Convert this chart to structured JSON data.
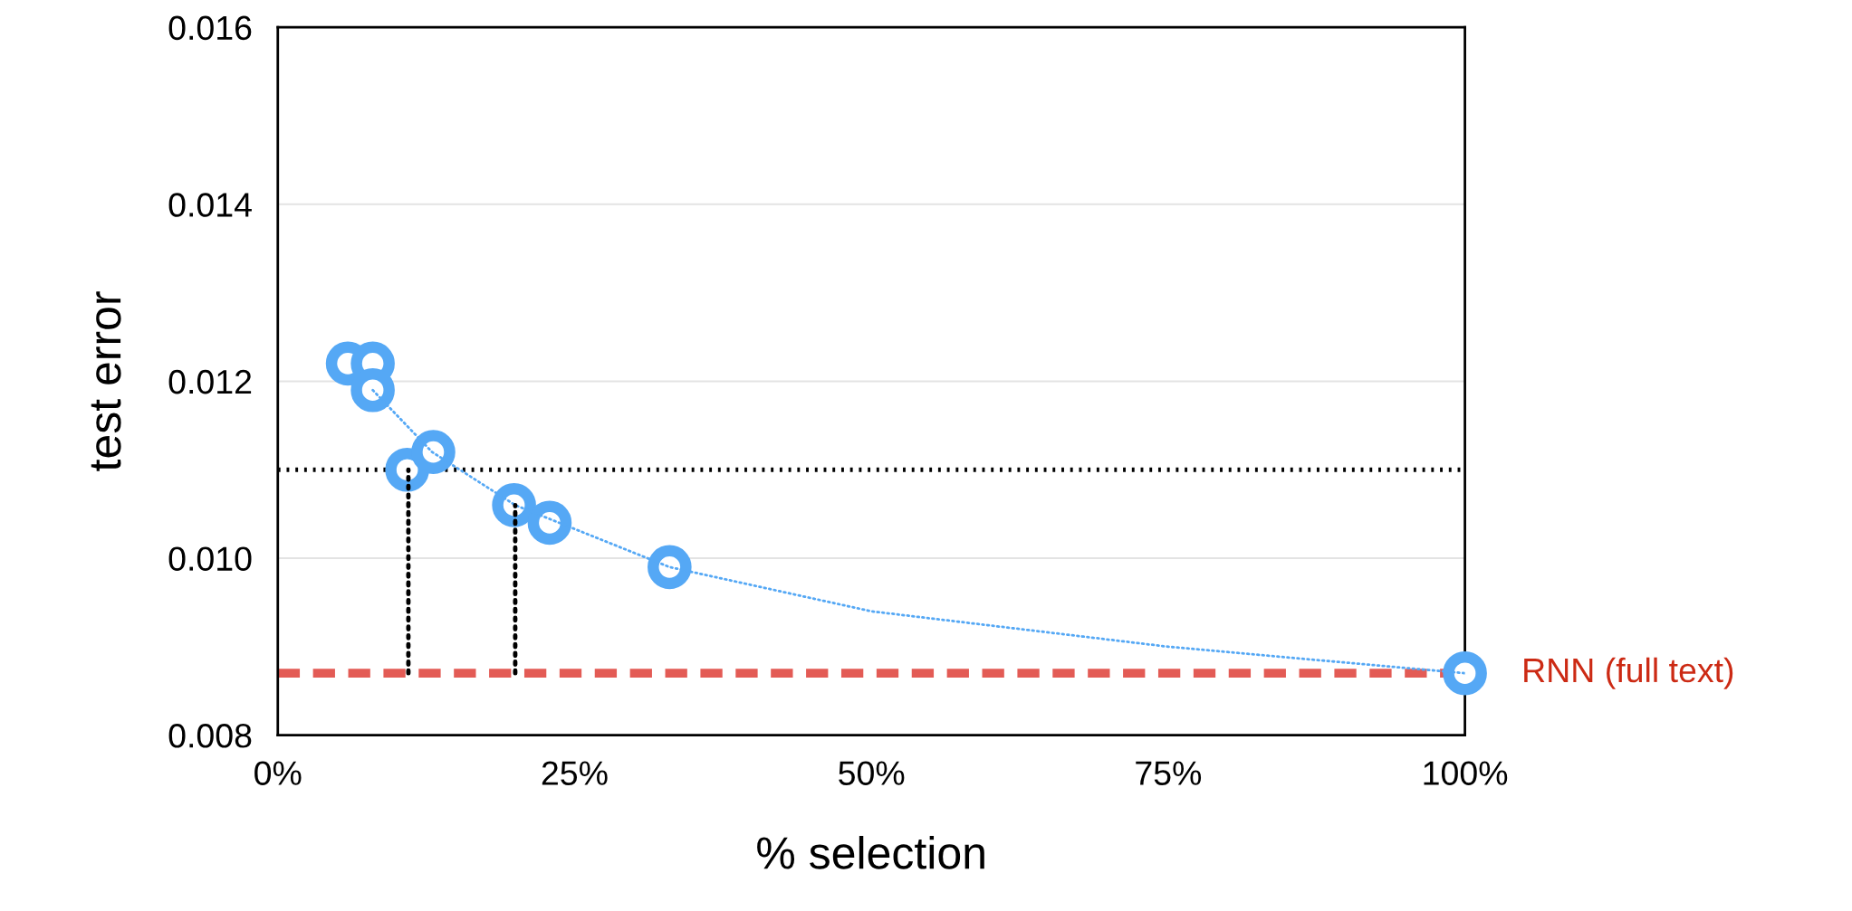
{
  "chart_data": {
    "type": "scatter",
    "xlabel": "% selection",
    "ylabel": "test error",
    "xlim": [
      0,
      100
    ],
    "xticks": [
      {
        "value": 0,
        "label": "0%"
      },
      {
        "value": 25,
        "label": "25%"
      },
      {
        "value": 50,
        "label": "50%"
      },
      {
        "value": 75,
        "label": "75%"
      },
      {
        "value": 100,
        "label": "100%"
      }
    ],
    "ylim": [
      0.008,
      0.016
    ],
    "yticks": [
      {
        "value": 0.008,
        "label": "0.008"
      },
      {
        "value": 0.01,
        "label": "0.010"
      },
      {
        "value": 0.012,
        "label": "0.012"
      },
      {
        "value": 0.014,
        "label": "0.014"
      },
      {
        "value": 0.016,
        "label": "0.016"
      }
    ],
    "grid": "y",
    "marker": "circle",
    "series": [
      {
        "type": "line",
        "marker": "none",
        "color": "#55a8f5",
        "line_style": "dotted",
        "x": [
          8,
          13,
          20,
          33,
          50,
          75,
          100
        ],
        "values": [
          0.0119,
          0.0112,
          0.0106,
          0.0099,
          0.0094,
          0.009,
          0.0087
        ]
      },
      {
        "type": "line",
        "marker": "none",
        "color": "#000000",
        "line_style": "dotted",
        "x": [
          11,
          11
        ],
        "values": [
          0.0087,
          0.011
        ]
      },
      {
        "type": "line",
        "marker": "none",
        "color": "#000000",
        "line_style": "dotted",
        "x": [
          20,
          20
        ],
        "values": [
          0.0087,
          0.0106
        ]
      },
      {
        "color": "#55a8f5",
        "x": [
          5.9,
          8,
          8,
          10.9,
          13.1,
          19.9,
          22.9,
          33,
          100
        ],
        "values": [
          0.0122,
          0.0122,
          0.0119,
          0.011,
          0.0112,
          0.0106,
          0.0104,
          0.0099,
          0.0087
        ]
      }
    ],
    "ref_lines": [
      {
        "axis": "y",
        "value": 0.011,
        "color": "#000000",
        "line_style": "dotted"
      },
      {
        "axis": "y",
        "value": 0.0087,
        "label": "RNN (full text)",
        "color": "#e35b55",
        "line_style": "dashed"
      }
    ]
  }
}
